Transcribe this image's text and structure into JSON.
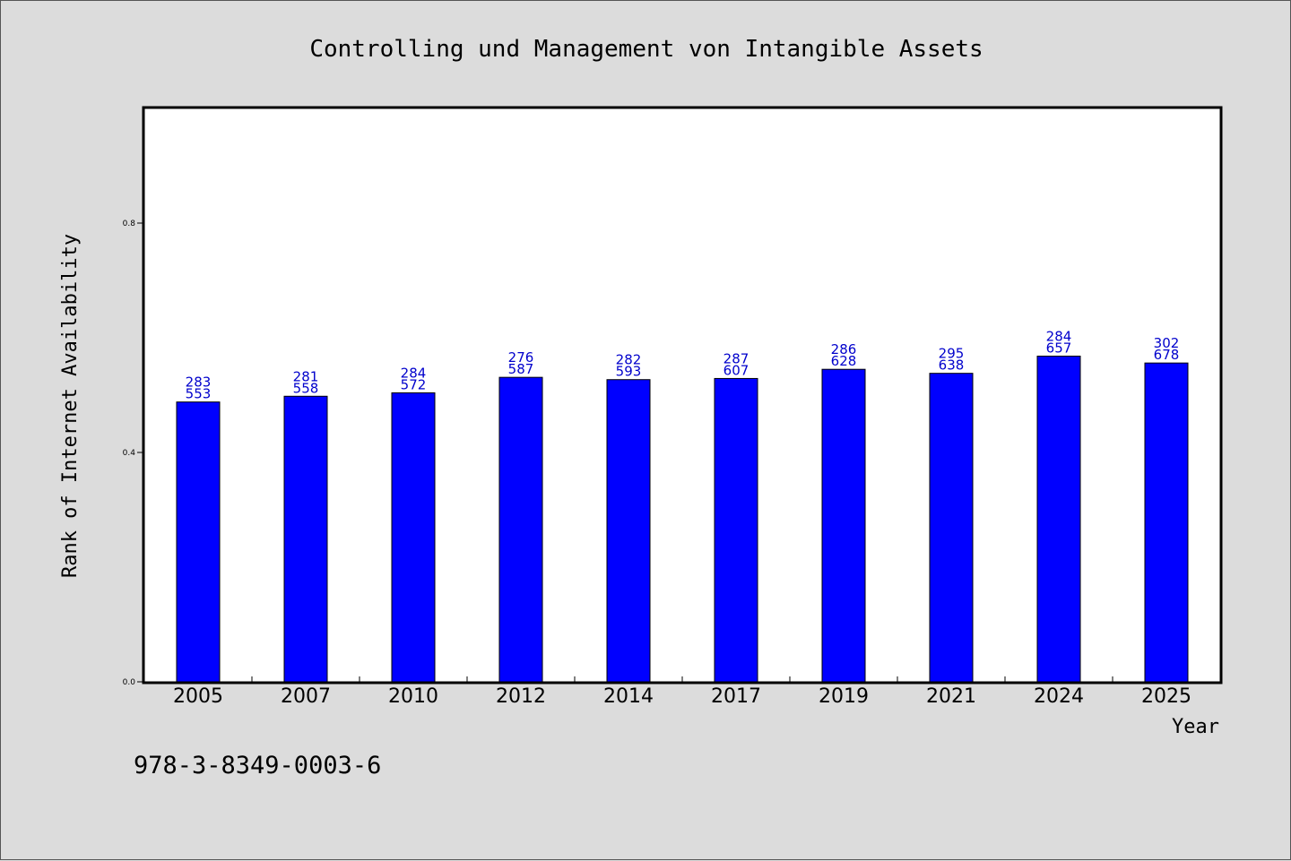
{
  "chart_data": {
    "type": "bar",
    "title": "Controlling und Management von Intangible Assets",
    "xlabel": "Year",
    "ylabel": "Rank of Internet Availability",
    "categories": [
      "2005",
      "2007",
      "2010",
      "2012",
      "2014",
      "2017",
      "2019",
      "2021",
      "2024",
      "2025"
    ],
    "values": [
      0.488,
      0.498,
      0.504,
      0.531,
      0.527,
      0.529,
      0.545,
      0.538,
      0.568,
      0.556
    ],
    "data_labels": [
      [
        "283",
        "553"
      ],
      [
        "281",
        "558"
      ],
      [
        "284",
        "572"
      ],
      [
        "276",
        "587"
      ],
      [
        "282",
        "593"
      ],
      [
        "287",
        "607"
      ],
      [
        "286",
        "628"
      ],
      [
        "295",
        "638"
      ],
      [
        "284",
        "657"
      ],
      [
        "302",
        "678"
      ]
    ],
    "yticks": [
      "0.0",
      "0.4",
      "0.8"
    ],
    "ylim": [
      0,
      1.0
    ],
    "bar_color": "#0000ff",
    "label_color": "#0000cc",
    "grid": false,
    "legend": "none"
  },
  "footer": {
    "isbn": "978-3-8349-0003-6"
  },
  "colors": {
    "background": "#dcdcdc",
    "plot_background": "#ffffff"
  }
}
